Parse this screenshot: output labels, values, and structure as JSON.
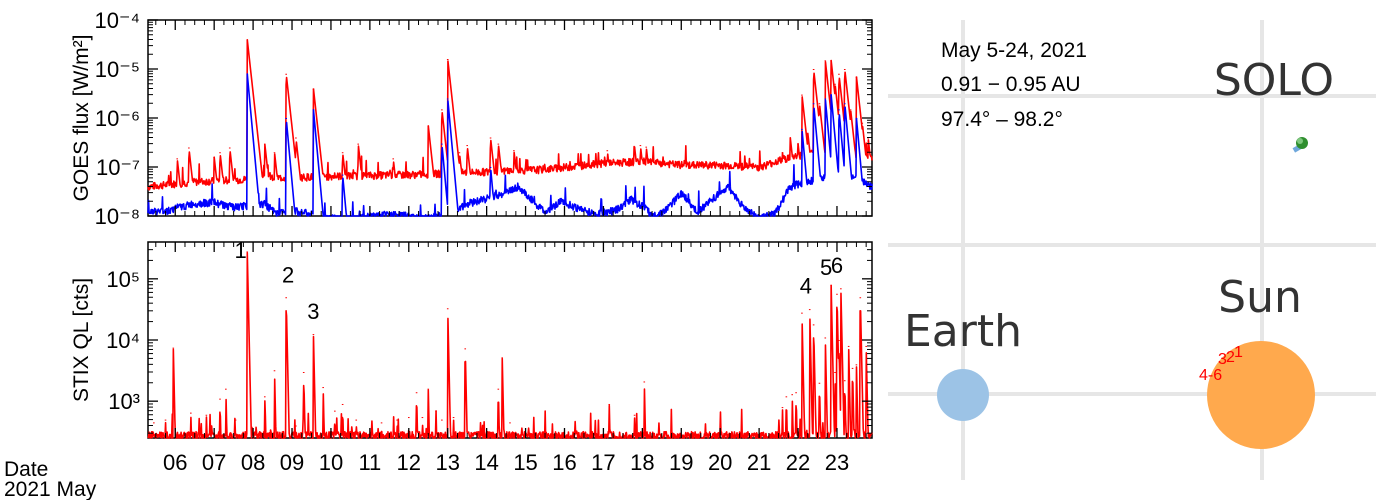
{
  "chart_data": [
    {
      "type": "line",
      "ylabel": "GOES flux [W/m²]",
      "yscale": "log",
      "ylim": [
        1e-08,
        0.0001
      ],
      "yticks": [
        "10⁻⁸",
        "10⁻⁷",
        "10⁻⁶",
        "10⁻⁵",
        "10⁻⁴"
      ],
      "xlim": [
        5.3,
        23.9
      ],
      "series": [
        {
          "color": "#ff0000",
          "baseline": [
            [
              5.3,
              4e-08
            ],
            [
              6.5,
              5e-08
            ],
            [
              8.5,
              6e-08
            ],
            [
              10,
              6.5e-08
            ],
            [
              12,
              7e-08
            ],
            [
              14,
              8e-08
            ],
            [
              15.5,
              9e-08
            ],
            [
              17,
              1.2e-07
            ],
            [
              18,
              1.3e-07
            ],
            [
              19,
              1.1e-07
            ],
            [
              20,
              1.1e-07
            ],
            [
              21,
              1e-07
            ],
            [
              21.8,
              1.6e-07
            ],
            [
              22.5,
              2e-07
            ],
            [
              23,
              2.4e-07
            ],
            [
              23.9,
              1.5e-07
            ]
          ],
          "peaks": [
            [
              6.05,
              1.5e-07
            ],
            [
              6.35,
              2.5e-07
            ],
            [
              7.0,
              1.6e-07
            ],
            [
              7.15,
              2e-07
            ],
            [
              7.4,
              2.5e-07
            ],
            [
              7.85,
              4e-05
            ],
            [
              8.3,
              3e-07
            ],
            [
              8.55,
              2e-07
            ],
            [
              8.85,
              8e-06
            ],
            [
              9.1,
              4e-07
            ],
            [
              9.55,
              4e-06
            ],
            [
              10.3,
              2e-07
            ],
            [
              10.7,
              3e-07
            ],
            [
              11.6,
              1.5e-07
            ],
            [
              12.5,
              7e-07
            ],
            [
              12.85,
              1.5e-06
            ],
            [
              13.0,
              1.6e-05
            ],
            [
              13.3,
              2e-07
            ],
            [
              13.5,
              2.8e-07
            ],
            [
              14.1,
              4e-07
            ],
            [
              14.3,
              3e-07
            ],
            [
              14.7,
              2.2e-07
            ],
            [
              17.1,
              2.2e-07
            ],
            [
              17.8,
              2.6e-07
            ],
            [
              17.95,
              2.8e-07
            ],
            [
              18.1,
              2.6e-07
            ],
            [
              21.6,
              2e-07
            ],
            [
              21.8,
              4e-07
            ],
            [
              22.0,
              3e-07
            ],
            [
              22.1,
              3e-06
            ],
            [
              22.25,
              5e-07
            ],
            [
              22.4,
              1e-05
            ],
            [
              22.55,
              2e-06
            ],
            [
              22.7,
              1.5e-05
            ],
            [
              22.85,
              1.5e-05
            ],
            [
              22.95,
              5e-06
            ],
            [
              23.05,
              8e-06
            ],
            [
              23.2,
              1e-05
            ],
            [
              23.35,
              1.5e-06
            ],
            [
              23.5,
              7e-06
            ],
            [
              23.65,
              8e-07
            ],
            [
              23.8,
              4e-07
            ]
          ]
        },
        {
          "color": "#0000ff",
          "baseline": [
            [
              5.3,
              1.2e-08
            ],
            [
              5.8,
              1.3e-08
            ],
            [
              6.5,
              1.8e-08
            ],
            [
              7.0,
              1.9e-08
            ],
            [
              7.5,
              1.5e-08
            ],
            [
              8.3,
              1.8e-08
            ],
            [
              8.6,
              1.1e-08
            ],
            [
              9.0,
              1.3e-08
            ],
            [
              9.5,
              1.1e-08
            ],
            [
              10.0,
              9e-09
            ],
            [
              10.6,
              8.5e-09
            ],
            [
              11.0,
              1e-08
            ],
            [
              11.5,
              1.1e-08
            ],
            [
              12.0,
              1e-08
            ],
            [
              12.5,
              9e-09
            ],
            [
              13.0,
              1.1e-08
            ],
            [
              13.5,
              1.8e-08
            ],
            [
              14.0,
              2.3e-08
            ],
            [
              14.5,
              3e-08
            ],
            [
              14.8,
              4e-08
            ],
            [
              15.2,
              2e-08
            ],
            [
              15.5,
              1.2e-08
            ],
            [
              15.9,
              2e-08
            ],
            [
              16.3,
              1.5e-08
            ],
            [
              16.8,
              1.1e-08
            ],
            [
              17.3,
              1.3e-08
            ],
            [
              17.7,
              2.2e-08
            ],
            [
              18.0,
              1.6e-08
            ],
            [
              18.3,
              1e-08
            ],
            [
              18.6,
              1.3e-08
            ],
            [
              19.0,
              3e-08
            ],
            [
              19.4,
              1.2e-08
            ],
            [
              19.8,
              2.2e-08
            ],
            [
              20.2,
              4e-08
            ],
            [
              20.6,
              1.5e-08
            ],
            [
              21.0,
              9e-09
            ],
            [
              21.4,
              1.1e-08
            ],
            [
              21.8,
              4e-08
            ],
            [
              22.2,
              5e-08
            ],
            [
              22.6,
              6e-08
            ],
            [
              23.0,
              7e-08
            ],
            [
              23.5,
              6e-08
            ],
            [
              23.9,
              4e-08
            ]
          ],
          "peaks": [
            [
              7.85,
              8e-06
            ],
            [
              8.85,
              1e-06
            ],
            [
              9.55,
              1.5e-06
            ],
            [
              10.3,
              7e-08
            ],
            [
              12.85,
              3e-07
            ],
            [
              13.0,
              2.5e-06
            ],
            [
              14.1,
              1e-07
            ],
            [
              22.1,
              6e-07
            ],
            [
              22.4,
              2e-06
            ],
            [
              22.7,
              2.5e-06
            ],
            [
              22.85,
              3e-06
            ],
            [
              23.05,
              1.5e-06
            ],
            [
              23.2,
              2e-06
            ],
            [
              23.5,
              1e-06
            ]
          ]
        }
      ]
    },
    {
      "type": "line",
      "ylabel": "STIX QL [cts]",
      "yscale": "log",
      "ylim": [
        250,
        400000
      ],
      "yticks": [
        "10³",
        "10⁴",
        "10⁵"
      ],
      "xlabel_lines": [
        "Date",
        "2021 May"
      ],
      "xlim": [
        5.3,
        23.9
      ],
      "xticks": [
        "06",
        "07",
        "08",
        "09",
        "10",
        "11",
        "12",
        "13",
        "14",
        "15",
        "16",
        "17",
        "18",
        "19",
        "20",
        "21",
        "22",
        "23"
      ],
      "series": [
        {
          "color": "#ff0000",
          "baseline": 270,
          "peaks": [
            [
              5.45,
              450
            ],
            [
              5.75,
              500
            ],
            [
              5.95,
              7500
            ],
            [
              6.4,
              650
            ],
            [
              6.8,
              600
            ],
            [
              7.15,
              1100
            ],
            [
              7.3,
              1600
            ],
            [
              7.55,
              500
            ],
            [
              7.85,
              280000
            ],
            [
              8.3,
              1200
            ],
            [
              8.55,
              3200
            ],
            [
              8.85,
              50000
            ],
            [
              9.1,
              400
            ],
            [
              9.3,
              3000
            ],
            [
              9.55,
              12500
            ],
            [
              9.8,
              1700
            ],
            [
              10.1,
              700
            ],
            [
              10.3,
              900
            ],
            [
              10.65,
              500
            ],
            [
              11.3,
              450
            ],
            [
              11.7,
              500
            ],
            [
              12.0,
              550
            ],
            [
              12.2,
              1400
            ],
            [
              12.35,
              550
            ],
            [
              12.5,
              1600
            ],
            [
              12.7,
              700
            ],
            [
              12.85,
              500
            ],
            [
              13.0,
              33000
            ],
            [
              13.15,
              550
            ],
            [
              13.45,
              7300
            ],
            [
              14.3,
              1600
            ],
            [
              14.4,
              5200
            ],
            [
              14.6,
              450
            ],
            [
              17.15,
              900
            ],
            [
              17.8,
              600
            ],
            [
              18.05,
              2100
            ],
            [
              21.6,
              800
            ],
            [
              21.7,
              1200
            ],
            [
              21.85,
              1300
            ],
            [
              21.95,
              1400
            ],
            [
              22.1,
              28000
            ],
            [
              22.3,
              32000
            ],
            [
              22.4,
              18000
            ],
            [
              22.55,
              2000
            ],
            [
              22.7,
              11000
            ],
            [
              22.85,
              80000
            ],
            [
              22.95,
              3000
            ],
            [
              23.0,
              57000
            ],
            [
              23.05,
              10000
            ],
            [
              23.1,
              70000
            ],
            [
              23.2,
              2200
            ],
            [
              23.3,
              8000
            ],
            [
              23.4,
              3500
            ],
            [
              23.5,
              4000
            ],
            [
              23.6,
              50000
            ],
            [
              23.75,
              8000
            ]
          ]
        }
      ],
      "annotations": [
        {
          "text": "1",
          "x": 7.68,
          "y": 220000
        },
        {
          "text": "2",
          "x": 8.9,
          "y": 87000
        },
        {
          "text": "3",
          "x": 9.55,
          "y": 22000
        },
        {
          "text": "4",
          "x": 22.2,
          "y": 58000
        },
        {
          "text": "5",
          "x": 22.72,
          "y": 115000
        },
        {
          "text": "6",
          "x": 23.0,
          "y": 125000
        }
      ]
    }
  ],
  "orbit_panel": {
    "info": [
      "May 5-24, 2021",
      "0.91 − 0.95 AU",
      "97.4° – 98.2°"
    ],
    "solo_label": "SOLO",
    "sun_label": "Sun",
    "earth_label": "Earth",
    "sun_color": "#ffa94d",
    "earth_color": "#9cc3e6",
    "flare_numbers": [
      "1",
      "2",
      "3",
      "4-6"
    ]
  }
}
